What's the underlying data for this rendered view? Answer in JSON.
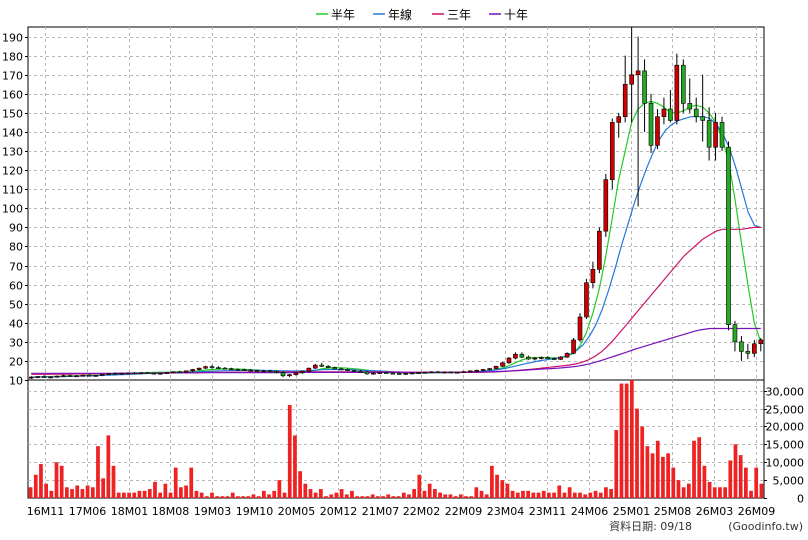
{
  "legend": [
    {
      "label": "半年",
      "color": "#22cc22"
    },
    {
      "label": "年線",
      "color": "#2277dd"
    },
    {
      "label": "三年",
      "color": "#cc1166"
    },
    {
      "label": "十年",
      "color": "#7711bb"
    }
  ],
  "footer": {
    "date_text": "資料日期: 09/18",
    "source_text": "(Goodinfo.tw)"
  },
  "colors": {
    "up": "#cc0000",
    "down": "#22aa22",
    "volume": "#ee2222",
    "grid": "#b8b8b8"
  },
  "chart_data": [
    {
      "type": "candlestick",
      "ylim": [
        10,
        195
      ],
      "yticks": [
        10,
        20,
        30,
        40,
        50,
        60,
        70,
        80,
        90,
        100,
        110,
        120,
        130,
        140,
        150,
        160,
        170,
        180,
        190
      ],
      "xticks": [
        "16M11",
        "17M06",
        "18M01",
        "18M08",
        "19M03",
        "19M10",
        "20M05",
        "20M12",
        "21M07",
        "22M02",
        "22M09",
        "23M04",
        "23M11",
        "24M06",
        "25M01",
        "25M08",
        "26M03",
        "26M09"
      ],
      "candles": [
        [
          11,
          12,
          10.5,
          11.5
        ],
        [
          11.5,
          12,
          11,
          11.8
        ],
        [
          11.8,
          12.5,
          11.2,
          11.4
        ],
        [
          11.4,
          12,
          11,
          11.6
        ],
        [
          11.6,
          12.4,
          11.2,
          12
        ],
        [
          12,
          12.8,
          11.6,
          12.3
        ],
        [
          12.3,
          12.8,
          11.8,
          12
        ],
        [
          12,
          12.6,
          11.5,
          12.2
        ],
        [
          12.2,
          12.8,
          11.8,
          12.5
        ],
        [
          12.5,
          13,
          12,
          12.2
        ],
        [
          12.2,
          12.7,
          11.8,
          12.4
        ],
        [
          12.4,
          13.2,
          12,
          13
        ],
        [
          13,
          13.8,
          12.5,
          13.4
        ],
        [
          13.4,
          14,
          12.8,
          13.2
        ],
        [
          13.2,
          13.8,
          12.7,
          13.5
        ],
        [
          13.5,
          14,
          13,
          13.7
        ],
        [
          13.7,
          14.2,
          13.2,
          13.5
        ],
        [
          13.5,
          14,
          13,
          13.8
        ],
        [
          13.8,
          14.2,
          13.2,
          13.6
        ],
        [
          13.6,
          14,
          13,
          13.3
        ],
        [
          13.3,
          13.9,
          12.8,
          13.6
        ],
        [
          13.6,
          14.1,
          13.1,
          13.9
        ],
        [
          13.9,
          14.6,
          13.4,
          14.3
        ],
        [
          14.3,
          14.8,
          13.8,
          14.1
        ],
        [
          14.1,
          15,
          13.6,
          14.8
        ],
        [
          14.8,
          15.8,
          14.2,
          15.5
        ],
        [
          15.5,
          16.5,
          15,
          16.2
        ],
        [
          16.2,
          17.5,
          15.8,
          17
        ],
        [
          17,
          17.8,
          15.9,
          16.5
        ],
        [
          16.5,
          17.2,
          15.8,
          16.2
        ],
        [
          16.2,
          16.8,
          15.5,
          15.9
        ],
        [
          15.9,
          16.4,
          15.3,
          15.6
        ],
        [
          15.6,
          16.1,
          15,
          15.4
        ],
        [
          15.4,
          15.9,
          14.8,
          15.2
        ],
        [
          15.2,
          15.8,
          14.5,
          15
        ],
        [
          15,
          15.5,
          14.2,
          14.6
        ],
        [
          14.6,
          15.2,
          14,
          14.8
        ],
        [
          14.8,
          15.3,
          14.2,
          14.5
        ],
        [
          14.5,
          15,
          13.5,
          13.8
        ],
        [
          13.8,
          14.5,
          11.5,
          12.2
        ],
        [
          12.2,
          13.2,
          11.6,
          12.8
        ],
        [
          12.8,
          14,
          12.3,
          13.8
        ],
        [
          13.8,
          15,
          13.3,
          14.6
        ],
        [
          14.6,
          16.5,
          14.2,
          16.2
        ],
        [
          16.2,
          18.5,
          15.8,
          17.8
        ],
        [
          17.8,
          19,
          16.8,
          17.2
        ],
        [
          17.2,
          17.8,
          16.2,
          16.5
        ],
        [
          16.5,
          17,
          15.6,
          15.8
        ],
        [
          15.8,
          16.4,
          15.2,
          15.5
        ],
        [
          15.5,
          16,
          14.6,
          14.9
        ],
        [
          14.9,
          15.4,
          14.3,
          14.6
        ],
        [
          14.6,
          15.2,
          14,
          14.3
        ],
        [
          14.3,
          14.8,
          12.8,
          13.2
        ],
        [
          13.2,
          14,
          12.8,
          13.6
        ],
        [
          13.6,
          14.2,
          13.2,
          13.9
        ],
        [
          13.9,
          14.4,
          13.4,
          13.6
        ],
        [
          13.6,
          14.1,
          13.1,
          13.4
        ],
        [
          13.4,
          13.9,
          12.9,
          13.2
        ],
        [
          13.2,
          13.8,
          12.7,
          13.5
        ],
        [
          13.5,
          14,
          13,
          13.7
        ],
        [
          13.7,
          14.2,
          13.2,
          13.9
        ],
        [
          13.9,
          14.4,
          13.4,
          14.1
        ],
        [
          14.1,
          14.6,
          13.6,
          14.3
        ],
        [
          14.3,
          14.8,
          13.8,
          14
        ],
        [
          14,
          14.5,
          13.5,
          14.2
        ],
        [
          14.2,
          14.6,
          13.7,
          13.9
        ],
        [
          13.9,
          14.4,
          13.4,
          14.1
        ],
        [
          14.1,
          14.6,
          13.6,
          14.4
        ],
        [
          14.4,
          15,
          13.9,
          14.8
        ],
        [
          14.8,
          15.4,
          14.3,
          15.1
        ],
        [
          15.1,
          15.8,
          14.6,
          15.5
        ],
        [
          15.5,
          16.3,
          15,
          16
        ],
        [
          16,
          17.5,
          15.6,
          17.2
        ],
        [
          17.2,
          19.5,
          16.8,
          19
        ],
        [
          19,
          22,
          18.5,
          21.5
        ],
        [
          21.5,
          24.5,
          20.8,
          23.5
        ],
        [
          23.5,
          24.5,
          21.5,
          22
        ],
        [
          22,
          22.8,
          20.6,
          21
        ],
        [
          21,
          22,
          20.2,
          21.5
        ],
        [
          21.5,
          22.3,
          20.8,
          21.8
        ],
        [
          21.8,
          22.5,
          21,
          21.2
        ],
        [
          21.2,
          21.8,
          20.4,
          20.8
        ],
        [
          20.8,
          22.5,
          20.4,
          22
        ],
        [
          22,
          24.5,
          21.6,
          24
        ],
        [
          24,
          32,
          23.5,
          31
        ],
        [
          31,
          45,
          30,
          43
        ],
        [
          43,
          63,
          42,
          61
        ],
        [
          61,
          72,
          58,
          68
        ],
        [
          68,
          90,
          66,
          88
        ],
        [
          88,
          118,
          85,
          115
        ],
        [
          115,
          147,
          110,
          145
        ],
        [
          145,
          150,
          137,
          148
        ],
        [
          148,
          180,
          145,
          165
        ],
        [
          165,
          195,
          145,
          170
        ],
        [
          170,
          190,
          101,
          172
        ],
        [
          172,
          178,
          140,
          155
        ],
        [
          155,
          160,
          129,
          133
        ],
        [
          133,
          152,
          131,
          148
        ],
        [
          148,
          158,
          144,
          152
        ],
        [
          152,
          162,
          145,
          146
        ],
        [
          146,
          181,
          144,
          175
        ],
        [
          175,
          178,
          150,
          155
        ],
        [
          155,
          168,
          150,
          152
        ],
        [
          152,
          158,
          145,
          148
        ],
        [
          148,
          170,
          135,
          146
        ],
        [
          146,
          153,
          125,
          132
        ],
        [
          132,
          150,
          125,
          145
        ],
        [
          145,
          148,
          130,
          132
        ],
        [
          132,
          135,
          36,
          39
        ],
        [
          39,
          41,
          25,
          30
        ],
        [
          30,
          33,
          20,
          25
        ],
        [
          25,
          29,
          21,
          24
        ],
        [
          24,
          31,
          22,
          29
        ],
        [
          29,
          32,
          25,
          31
        ]
      ],
      "ma_half": [
        11.5,
        11.6,
        11.7,
        11.8,
        11.9,
        12,
        12.1,
        12.2,
        12.3,
        12.4,
        12.5,
        12.6,
        12.8,
        13,
        13.2,
        13.4,
        13.6,
        13.8,
        13.9,
        14,
        14.1,
        14.1,
        14.2,
        14.3,
        14.4,
        14.6,
        14.9,
        15.2,
        15.5,
        15.7,
        15.8,
        15.8,
        15.7,
        15.6,
        15.4,
        15.2,
        15,
        14.8,
        14.6,
        14.3,
        14,
        13.8,
        13.8,
        14.2,
        15,
        15.8,
        16.3,
        16.5,
        16.4,
        16.2,
        15.9,
        15.6,
        15.2,
        14.8,
        14.5,
        14.2,
        14,
        13.8,
        13.6,
        13.5,
        13.5,
        13.6,
        13.7,
        13.8,
        13.9,
        14,
        14,
        14.1,
        14.2,
        14.4,
        14.7,
        15,
        15.5,
        16.3,
        17.5,
        19,
        20.5,
        21.5,
        21.8,
        21.8,
        21.7,
        21.6,
        21.7,
        22.5,
        24,
        28,
        35,
        45,
        58,
        75,
        95,
        115,
        130,
        145,
        152,
        155,
        156,
        155,
        153,
        150,
        150,
        151,
        153,
        154,
        153,
        150,
        145,
        137,
        125,
        105,
        82,
        60,
        40,
        30
      ],
      "ma_year": [
        11.5,
        11.5,
        11.6,
        11.6,
        11.7,
        11.8,
        11.9,
        12,
        12.1,
        12.2,
        12.3,
        12.4,
        12.5,
        12.6,
        12.8,
        12.9,
        13.1,
        13.2,
        13.4,
        13.5,
        13.6,
        13.7,
        13.8,
        13.9,
        14,
        14.1,
        14.2,
        14.4,
        14.5,
        14.7,
        14.8,
        14.9,
        15,
        15,
        15.1,
        15.1,
        15.1,
        15,
        15,
        14.9,
        14.8,
        14.7,
        14.7,
        14.8,
        15,
        15.2,
        15.4,
        15.5,
        15.5,
        15.5,
        15.4,
        15.3,
        15.1,
        15,
        14.8,
        14.7,
        14.5,
        14.3,
        14.2,
        14,
        13.9,
        13.8,
        13.8,
        13.8,
        13.8,
        13.8,
        13.8,
        13.9,
        14,
        14.1,
        14.3,
        14.5,
        14.8,
        15.2,
        15.7,
        16.3,
        17,
        17.8,
        18.6,
        19.3,
        20,
        20.5,
        21,
        21.5,
        22.2,
        23.5,
        25.5,
        28.5,
        33,
        39,
        47,
        57,
        68,
        80,
        91,
        102,
        112,
        121,
        129,
        136,
        141,
        144,
        146,
        147,
        148,
        148,
        148,
        147,
        144,
        139,
        132,
        122,
        110,
        98,
        91,
        90
      ],
      "ma_3yr": [
        13,
        13,
        13,
        13,
        13.1,
        13.1,
        13.1,
        13.2,
        13.2,
        13.2,
        13.3,
        13.3,
        13.3,
        13.4,
        13.4,
        13.4,
        13.5,
        13.5,
        13.5,
        13.6,
        13.6,
        13.6,
        13.7,
        13.7,
        13.8,
        13.8,
        13.9,
        13.9,
        14,
        14,
        14,
        14.1,
        14.1,
        14.1,
        14.2,
        14.2,
        14.2,
        14.2,
        14.2,
        14.2,
        14.2,
        14.2,
        14.2,
        14.2,
        14.3,
        14.3,
        14.3,
        14.3,
        14.3,
        14.3,
        14.3,
        14.3,
        14.3,
        14.3,
        14.2,
        14.2,
        14.2,
        14.2,
        14.1,
        14.1,
        14.1,
        14,
        14,
        14,
        14,
        14,
        14,
        14,
        14,
        14,
        14,
        14.1,
        14.2,
        14.3,
        14.5,
        14.7,
        15,
        15.3,
        15.6,
        15.9,
        16.3,
        16.7,
        17,
        17.4,
        17.8,
        18.4,
        19.2,
        20.5,
        22.2,
        24.5,
        27.5,
        31,
        35,
        39,
        43,
        47,
        51,
        55,
        59,
        63,
        67,
        71,
        75,
        78,
        81,
        84,
        86,
        88,
        89,
        89,
        89,
        89,
        89.5,
        90,
        90
      ],
      "ma_10yr": [
        13.5,
        13.5,
        13.5,
        13.5,
        13.5,
        13.5,
        13.5,
        13.5,
        13.5,
        13.5,
        13.5,
        13.5,
        13.5,
        13.5,
        13.6,
        13.6,
        13.6,
        13.6,
        13.6,
        13.6,
        13.6,
        13.7,
        13.7,
        13.7,
        13.7,
        13.7,
        13.7,
        13.8,
        13.8,
        13.8,
        13.8,
        13.8,
        13.8,
        13.9,
        13.9,
        13.9,
        13.9,
        13.9,
        13.9,
        13.9,
        13.9,
        13.9,
        13.9,
        14,
        14,
        14,
        14,
        14,
        14,
        14,
        14,
        14,
        14,
        14,
        14,
        14,
        14,
        14,
        14,
        14,
        14,
        14,
        14,
        14,
        14,
        14,
        14,
        14.1,
        14.1,
        14.1,
        14.2,
        14.2,
        14.3,
        14.4,
        14.5,
        14.6,
        14.8,
        15,
        15.2,
        15.4,
        15.6,
        15.8,
        16,
        16.2,
        16.5,
        16.8,
        17.2,
        17.8,
        18.5,
        19.4,
        20.4,
        21.5,
        22.6,
        23.7,
        24.8,
        26,
        27,
        28,
        29,
        30,
        31,
        32,
        33,
        34,
        35,
        36,
        36.5,
        37,
        37,
        37,
        37,
        37,
        37,
        37,
        37,
        37
      ],
      "vol_ylim": [
        0,
        33000
      ],
      "vol_yticks": [
        "0",
        "5,000",
        "10,000",
        "15,000",
        "20,000",
        "25,000",
        "30,000"
      ],
      "volume": [
        3000,
        6500,
        9500,
        4000,
        2000,
        10000,
        9000,
        3000,
        2500,
        3500,
        2500,
        3500,
        3000,
        14500,
        5500,
        17500,
        9000,
        1500,
        1500,
        1500,
        1500,
        2000,
        2000,
        2500,
        4500,
        1500,
        4000,
        1500,
        8500,
        3000,
        3500,
        8500,
        2000,
        1500,
        500,
        1500,
        500,
        500,
        500,
        1500,
        500,
        500,
        500,
        1000,
        500,
        2000,
        1000,
        2000,
        5000,
        1500,
        26000,
        17500,
        7500,
        4000,
        2500,
        1500,
        2500,
        500,
        1000,
        1500,
        2500,
        1000,
        2000,
        500,
        500,
        500,
        1000,
        500,
        500,
        1000,
        500,
        500,
        1500,
        1000,
        2500,
        6500,
        2000,
        4000,
        2500,
        1500,
        1000,
        1000,
        500,
        1000,
        500,
        500,
        3000,
        2000,
        1000,
        9000,
        6500,
        5000,
        4000,
        2000,
        1500,
        2000,
        2000,
        1500,
        1500,
        2000,
        1500,
        1500,
        3500,
        1500,
        3000,
        1500,
        1500,
        1000,
        1500,
        2000,
        1500,
        3000,
        2500,
        19000,
        32000,
        32000,
        33000,
        25000,
        20000,
        14500,
        12500,
        16000,
        11500,
        12500,
        8500,
        5000,
        3000,
        4000,
        16000,
        17000,
        9000,
        4500,
        3000,
        3000,
        3000,
        10500,
        15000,
        12000,
        8500,
        2000,
        8500,
        4000
      ]
    }
  ]
}
